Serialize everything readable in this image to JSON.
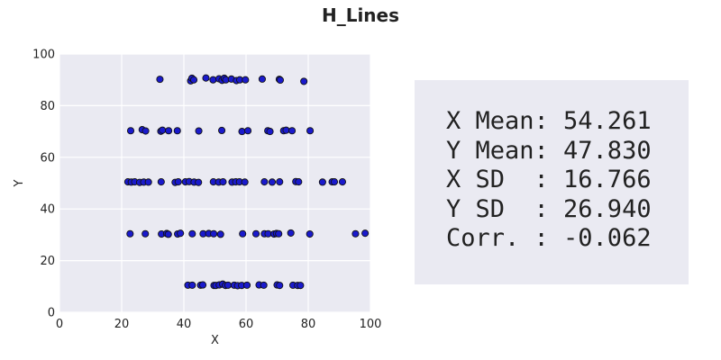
{
  "figure": {
    "title": "H_Lines"
  },
  "chart_data": {
    "type": "scatter",
    "xlabel": "X",
    "ylabel": "Y",
    "xlim": [
      0,
      100
    ],
    "ylim": [
      0,
      100
    ],
    "xticks": [
      0,
      20,
      40,
      60,
      80,
      100
    ],
    "yticks": [
      0,
      20,
      40,
      60,
      80,
      100
    ],
    "grid": true,
    "style": "seaborn-darkgrid",
    "colors": {
      "axes_background": "#eaeaf2",
      "grid": "#ffffff",
      "marker_fill": "#1a1acc",
      "marker_edge": "#111111",
      "text": "#222222"
    },
    "series": [
      {
        "points": [
          [
            32.3,
            90.2
          ],
          [
            42.2,
            89.6
          ],
          [
            42.6,
            90.6
          ],
          [
            43.2,
            90.0
          ],
          [
            47.1,
            90.7
          ],
          [
            49.4,
            90.0
          ],
          [
            51.3,
            90.4
          ],
          [
            52.3,
            89.8
          ],
          [
            53.0,
            90.6
          ],
          [
            53.5,
            90.0
          ],
          [
            55.3,
            90.3
          ],
          [
            56.9,
            89.7
          ],
          [
            58.0,
            90.0
          ],
          [
            59.8,
            90.0
          ],
          [
            65.2,
            90.3
          ],
          [
            70.7,
            90.2
          ],
          [
            71.0,
            89.9
          ],
          [
            78.6,
            89.4
          ],
          [
            22.9,
            70.3
          ],
          [
            26.6,
            70.7
          ],
          [
            27.7,
            70.2
          ],
          [
            32.6,
            70.1
          ],
          [
            33.1,
            70.5
          ],
          [
            35.1,
            70.3
          ],
          [
            37.9,
            70.3
          ],
          [
            44.8,
            70.2
          ],
          [
            52.2,
            70.4
          ],
          [
            58.7,
            70.0
          ],
          [
            60.6,
            70.3
          ],
          [
            67.0,
            70.3
          ],
          [
            67.7,
            70.0
          ],
          [
            72.1,
            70.3
          ],
          [
            72.9,
            70.5
          ],
          [
            74.8,
            70.3
          ],
          [
            80.6,
            70.3
          ],
          [
            22.0,
            50.5
          ],
          [
            23.1,
            50.4
          ],
          [
            24.2,
            50.5
          ],
          [
            25.8,
            50.3
          ],
          [
            27.1,
            50.4
          ],
          [
            28.6,
            50.4
          ],
          [
            32.7,
            50.5
          ],
          [
            37.2,
            50.3
          ],
          [
            38.2,
            50.5
          ],
          [
            40.5,
            50.5
          ],
          [
            41.7,
            50.6
          ],
          [
            43.3,
            50.4
          ],
          [
            44.7,
            50.3
          ],
          [
            49.5,
            50.5
          ],
          [
            51.2,
            50.4
          ],
          [
            52.6,
            50.5
          ],
          [
            55.5,
            50.4
          ],
          [
            56.7,
            50.5
          ],
          [
            57.9,
            50.5
          ],
          [
            59.6,
            50.4
          ],
          [
            65.9,
            50.5
          ],
          [
            68.4,
            50.4
          ],
          [
            70.8,
            50.5
          ],
          [
            76.0,
            50.6
          ],
          [
            76.9,
            50.5
          ],
          [
            84.6,
            50.4
          ],
          [
            87.7,
            50.5
          ],
          [
            88.4,
            50.5
          ],
          [
            91.0,
            50.5
          ],
          [
            22.7,
            30.4
          ],
          [
            27.6,
            30.4
          ],
          [
            32.8,
            30.3
          ],
          [
            34.5,
            30.5
          ],
          [
            35.0,
            30.2
          ],
          [
            38.0,
            30.3
          ],
          [
            38.9,
            30.6
          ],
          [
            42.7,
            30.4
          ],
          [
            46.2,
            30.4
          ],
          [
            48.0,
            30.5
          ],
          [
            49.6,
            30.4
          ],
          [
            51.8,
            30.2
          ],
          [
            58.9,
            30.4
          ],
          [
            63.2,
            30.4
          ],
          [
            65.9,
            30.4
          ],
          [
            67.1,
            30.4
          ],
          [
            69.0,
            30.3
          ],
          [
            69.8,
            30.5
          ],
          [
            70.5,
            30.4
          ],
          [
            74.4,
            30.7
          ],
          [
            80.5,
            30.3
          ],
          [
            95.2,
            30.4
          ],
          [
            98.3,
            30.6
          ],
          [
            41.3,
            10.5
          ],
          [
            42.7,
            10.5
          ],
          [
            45.4,
            10.5
          ],
          [
            46.1,
            10.6
          ],
          [
            49.7,
            10.4
          ],
          [
            50.3,
            10.4
          ],
          [
            51.4,
            10.6
          ],
          [
            52.5,
            10.9
          ],
          [
            53.4,
            10.4
          ],
          [
            54.2,
            10.5
          ],
          [
            56.2,
            10.5
          ],
          [
            57.3,
            10.3
          ],
          [
            58.6,
            10.4
          ],
          [
            60.3,
            10.5
          ],
          [
            64.2,
            10.6
          ],
          [
            65.7,
            10.5
          ],
          [
            70.0,
            10.6
          ],
          [
            70.8,
            10.4
          ],
          [
            75.1,
            10.5
          ],
          [
            76.6,
            10.4
          ],
          [
            77.5,
            10.4
          ]
        ]
      }
    ]
  },
  "stats": {
    "lines": [
      "X Mean: 54.261",
      "Y Mean: 47.830",
      "X SD  : 16.766",
      "Y SD  : 26.940",
      "Corr. : -0.062"
    ]
  }
}
